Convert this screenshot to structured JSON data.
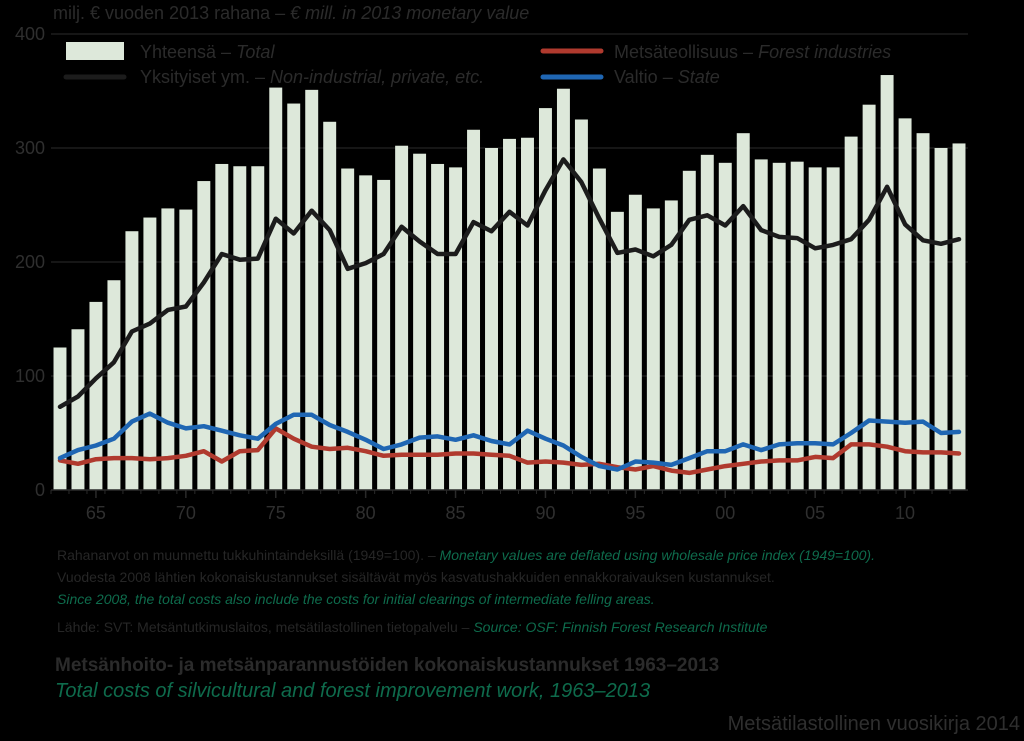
{
  "header": {
    "unit_fi": "milj. € vuoden 2013 rahana – ",
    "unit_en": "€ mill. in 2013 monetary value"
  },
  "notes": {
    "line1_fi": "Rahanarvot on muunnettu tukkuhintaindeksillä (1949=100). – ",
    "line1_en": "Monetary values are deflated using wholesale price index (1949=100).",
    "line2_fi": "Vuodesta 2008 lähtien kokonaiskustannukset sisältävät myös kasvatushakkuiden ennakkoraivauksen kustannukset.",
    "line3_en": "Since 2008, the total costs also include the costs for initial clearings of intermediate felling areas.",
    "source_fi": "Lähde: SVT: Metsäntutkimuslaitos, metsätilastollinen tietopalvelu – ",
    "source_en": "Source: OSF: Finnish Forest Research Institute"
  },
  "title_fi": "Metsänhoito- ja metsänparannustöiden kokonaiskustannukset 1963–2013",
  "title_en": "Total costs of silvicultural and forest improvement work, 1963–2013",
  "yearbook": "Metsätilastollinen vuosikirja 2014",
  "colors": {
    "background": "#000000",
    "plot_area": "#000000",
    "total_bar": "#dde8da",
    "private_line": "#1c1c1c",
    "industry_line": "#b03a2e",
    "state_line": "#1f66b3",
    "text_green": "#0e6b4c"
  },
  "chart_data": {
    "type": "bar",
    "ylim": [
      0,
      400
    ],
    "yticks": [
      0,
      100,
      200,
      300,
      400
    ],
    "xtick_labels": [
      "65",
      "70",
      "75",
      "80",
      "85",
      "90",
      "95",
      "00",
      "05",
      "10"
    ],
    "xtick_years": [
      1965,
      1970,
      1975,
      1980,
      1985,
      1990,
      1995,
      2000,
      2005,
      2010
    ],
    "x": [
      1963,
      1964,
      1965,
      1966,
      1967,
      1968,
      1969,
      1970,
      1971,
      1972,
      1973,
      1974,
      1975,
      1976,
      1977,
      1978,
      1979,
      1980,
      1981,
      1982,
      1983,
      1984,
      1985,
      1986,
      1987,
      1988,
      1989,
      1990,
      1991,
      1992,
      1993,
      1994,
      1995,
      1996,
      1997,
      1998,
      1999,
      2000,
      2001,
      2002,
      2003,
      2004,
      2005,
      2006,
      2007,
      2008,
      2009,
      2010,
      2011,
      2012,
      2013
    ],
    "legend": {
      "total_fi": "Yhteensä – ",
      "total_en": "Total",
      "private_fi": "Yksityiset ym. – ",
      "private_en": "Non-industrial, private, etc.",
      "industry_fi": "Metsäteollisuus – ",
      "industry_en": "Forest industries",
      "state_fi": "Valtio – ",
      "state_en": "State"
    },
    "series": [
      {
        "key": "total",
        "kind": "bar",
        "values": [
          125,
          141,
          165,
          184,
          227,
          239,
          247,
          246,
          271,
          286,
          284,
          284,
          353,
          339,
          351,
          323,
          282,
          276,
          272,
          302,
          295,
          286,
          283,
          316,
          300,
          308,
          309,
          335,
          352,
          325,
          282,
          244,
          259,
          247,
          254,
          280,
          294,
          287,
          313,
          290,
          287,
          288,
          283,
          283,
          310,
          338,
          364,
          326,
          313,
          300,
          304
        ]
      },
      {
        "key": "private",
        "kind": "line",
        "values": [
          73,
          82,
          98,
          112,
          139,
          146,
          158,
          161,
          182,
          207,
          202,
          203,
          238,
          225,
          245,
          228,
          194,
          199,
          207,
          231,
          218,
          207,
          207,
          235,
          227,
          244,
          232,
          263,
          290,
          270,
          238,
          208,
          211,
          205,
          215,
          237,
          241,
          232,
          249,
          228,
          222,
          221,
          212,
          215,
          220,
          237,
          266,
          233,
          219,
          216,
          220
        ]
      },
      {
        "key": "industry",
        "kind": "line",
        "values": [
          26,
          23,
          27,
          28,
          28,
          27,
          28,
          30,
          34,
          25,
          34,
          35,
          54,
          45,
          38,
          36,
          37,
          34,
          30,
          31,
          31,
          31,
          32,
          32,
          31,
          30,
          24,
          25,
          24,
          22,
          23,
          20,
          18,
          21,
          17,
          15,
          18,
          21,
          23,
          25,
          26,
          26,
          29,
          28,
          40,
          40,
          38,
          34,
          33,
          33,
          32
        ]
      },
      {
        "key": "state",
        "kind": "line",
        "values": [
          28,
          35,
          39,
          45,
          60,
          67,
          59,
          54,
          56,
          52,
          48,
          45,
          58,
          66,
          66,
          57,
          51,
          44,
          36,
          40,
          46,
          47,
          44,
          48,
          43,
          40,
          52,
          45,
          39,
          29,
          21,
          18,
          25,
          24,
          22,
          28,
          34,
          34,
          40,
          35,
          40,
          41,
          41,
          40,
          50,
          61,
          60,
          59,
          60,
          50,
          51
        ]
      }
    ]
  }
}
